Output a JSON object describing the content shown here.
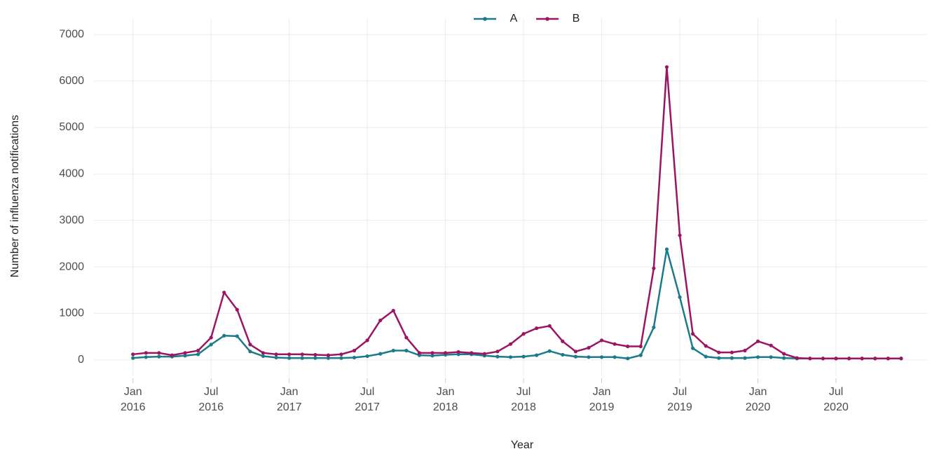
{
  "chart_data": {
    "type": "line",
    "xlabel": "Year",
    "ylabel": "Number of influenza notifications",
    "x": [
      "2016-01",
      "2016-02",
      "2016-03",
      "2016-04",
      "2016-05",
      "2016-06",
      "2016-07",
      "2016-08",
      "2016-09",
      "2016-10",
      "2016-11",
      "2016-12",
      "2017-01",
      "2017-02",
      "2017-03",
      "2017-04",
      "2017-05",
      "2017-06",
      "2017-07",
      "2017-08",
      "2017-09",
      "2017-10",
      "2017-11",
      "2017-12",
      "2018-01",
      "2018-02",
      "2018-03",
      "2018-04",
      "2018-05",
      "2018-06",
      "2018-07",
      "2018-08",
      "2018-09",
      "2018-10",
      "2018-11",
      "2018-12",
      "2019-01",
      "2019-02",
      "2019-03",
      "2019-04",
      "2019-05",
      "2019-06",
      "2019-07",
      "2019-08",
      "2019-09",
      "2019-10",
      "2019-11",
      "2019-12",
      "2020-01",
      "2020-02",
      "2020-03",
      "2020-04",
      "2020-05",
      "2020-06",
      "2020-07",
      "2020-08",
      "2020-09",
      "2020-10",
      "2020-11",
      "2020-12"
    ],
    "series": [
      {
        "name": "A",
        "color": "#1b7b8a",
        "values": [
          40,
          60,
          70,
          70,
          90,
          120,
          330,
          520,
          510,
          180,
          80,
          50,
          40,
          40,
          40,
          40,
          40,
          50,
          80,
          130,
          200,
          200,
          100,
          90,
          110,
          120,
          120,
          90,
          70,
          60,
          70,
          100,
          190,
          110,
          70,
          60,
          60,
          60,
          30,
          100,
          700,
          2380,
          1350,
          250,
          70,
          40,
          40,
          40,
          60,
          60,
          40,
          30,
          30,
          30,
          30,
          30,
          30,
          30,
          30,
          30
        ]
      },
      {
        "name": "B",
        "color": "#9c1563",
        "values": [
          120,
          150,
          150,
          100,
          150,
          200,
          480,
          1450,
          1080,
          330,
          150,
          120,
          120,
          120,
          110,
          100,
          120,
          200,
          420,
          850,
          1060,
          480,
          150,
          150,
          150,
          170,
          150,
          130,
          180,
          340,
          560,
          680,
          730,
          400,
          180,
          260,
          420,
          340,
          290,
          290,
          1970,
          6300,
          2680,
          560,
          300,
          160,
          160,
          200,
          400,
          310,
          130,
          40,
          30,
          30,
          30,
          30,
          30,
          30,
          30,
          30
        ]
      }
    ],
    "xlim": [
      "2015-10",
      "2021-02"
    ],
    "xticks": [
      {
        "value": "2016-01",
        "label": "Jan 2016"
      },
      {
        "value": "2016-07",
        "label": "Jul 2016"
      },
      {
        "value": "2017-01",
        "label": "Jan 2017"
      },
      {
        "value": "2017-07",
        "label": "Jul 2017"
      },
      {
        "value": "2018-01",
        "label": "Jan 2018"
      },
      {
        "value": "2018-07",
        "label": "Jul 2018"
      },
      {
        "value": "2019-01",
        "label": "Jan 2019"
      },
      {
        "value": "2019-07",
        "label": "Jul 2019"
      },
      {
        "value": "2020-01",
        "label": "Jan 2020"
      },
      {
        "value": "2020-07",
        "label": "Jul 2020"
      }
    ],
    "ylim": [
      -350,
      7350
    ],
    "yticks": [
      0,
      1000,
      2000,
      3000,
      4000,
      5000,
      6000,
      7000
    ],
    "grid": true,
    "legend": "top"
  }
}
